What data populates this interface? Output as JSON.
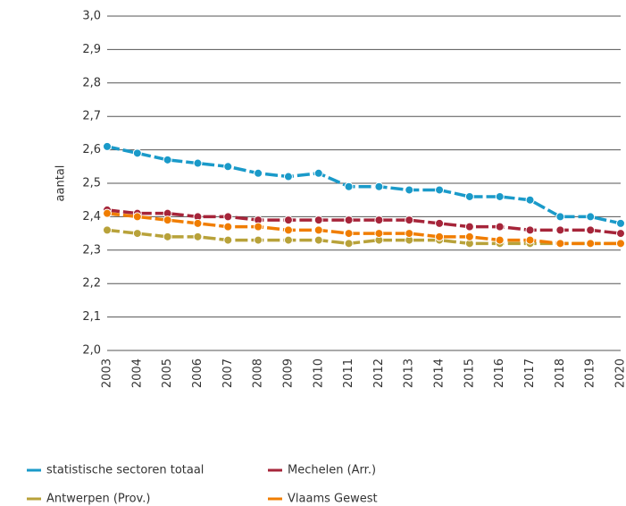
{
  "chart_data": {
    "type": "line",
    "y_label": "aantal",
    "categories": [
      "2003",
      "2004",
      "2005",
      "2006",
      "2007",
      "2008",
      "2009",
      "2010",
      "2011",
      "2012",
      "2013",
      "2014",
      "2015",
      "2016",
      "2017",
      "2018",
      "2019",
      "2020"
    ],
    "series": [
      {
        "name": "statistische sectoren totaal",
        "color": "#1a9ac9",
        "values": [
          2.61,
          2.59,
          2.57,
          2.56,
          2.55,
          2.53,
          2.52,
          2.53,
          2.49,
          2.49,
          2.48,
          2.48,
          2.46,
          2.46,
          2.45,
          2.4,
          2.4,
          2.38
        ]
      },
      {
        "name": "Mechelen (Arr.)",
        "color": "#a6253a",
        "values": [
          2.42,
          2.41,
          2.41,
          2.4,
          2.4,
          2.39,
          2.39,
          2.39,
          2.39,
          2.39,
          2.39,
          2.38,
          2.37,
          2.37,
          2.36,
          2.36,
          2.36,
          2.35
        ]
      },
      {
        "name": "Antwerpen (Prov.)",
        "color": "#b8a23a",
        "values": [
          2.36,
          2.35,
          2.34,
          2.34,
          2.33,
          2.33,
          2.33,
          2.33,
          2.32,
          2.33,
          2.33,
          2.33,
          2.32,
          2.32,
          2.32,
          2.32,
          2.32,
          2.32
        ]
      },
      {
        "name": "Vlaams Gewest",
        "color": "#f07d00",
        "values": [
          2.41,
          2.4,
          2.39,
          2.38,
          2.37,
          2.37,
          2.36,
          2.36,
          2.35,
          2.35,
          2.35,
          2.34,
          2.34,
          2.33,
          2.33,
          2.32,
          2.32,
          2.32
        ]
      }
    ],
    "ylim": [
      2.0,
      3.0
    ],
    "yticks": [
      {
        "value": 2.0,
        "label": "2,0"
      },
      {
        "value": 2.1,
        "label": "2,1"
      },
      {
        "value": 2.2,
        "label": "2,2"
      },
      {
        "value": 2.3,
        "label": "2,3"
      },
      {
        "value": 2.4,
        "label": "2,4"
      },
      {
        "value": 2.5,
        "label": "2,5"
      },
      {
        "value": 2.6,
        "label": "2,6"
      },
      {
        "value": 2.7,
        "label": "2,7"
      },
      {
        "value": 2.8,
        "label": "2,8"
      },
      {
        "value": 2.9,
        "label": "2,9"
      },
      {
        "value": 3.0,
        "label": "3,0"
      }
    ],
    "grid": true
  }
}
